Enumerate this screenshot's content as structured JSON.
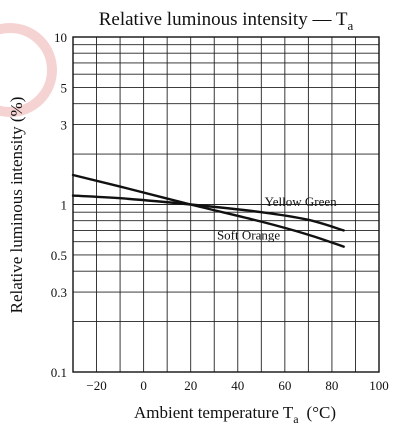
{
  "chart_data": {
    "type": "line",
    "title": "Relative luminous intensity — T",
    "title_sub": "a",
    "xlabel": "Ambient temperature  T",
    "xlabel_sub": "a",
    "xlabel_unit": "(°C)",
    "ylabel": "Relative luminous intensity  (%)",
    "y_scale": "log",
    "xlim": [
      -30,
      100
    ],
    "ylim": [
      0.1,
      10
    ],
    "x_ticks": [
      -20,
      0,
      20,
      40,
      60,
      80,
      100
    ],
    "x_tick_labels": [
      "−20",
      "0",
      "20",
      "40",
      "60",
      "80",
      "100"
    ],
    "y_ticks": [
      0.1,
      0.3,
      0.5,
      1,
      3,
      5,
      10
    ],
    "y_tick_labels": [
      "0.1",
      "0.3",
      "0.5",
      "1",
      "3",
      "5",
      "10"
    ],
    "grid": true,
    "watermark_color": "#f2c4c4",
    "series": [
      {
        "name": "Yellow Green",
        "x": [
          -30,
          -10,
          20,
          50,
          70,
          85
        ],
        "values": [
          1.13,
          1.09,
          1.0,
          0.9,
          0.81,
          0.7
        ]
      },
      {
        "name": "Soft Orange",
        "x": [
          -30,
          -10,
          20,
          50,
          70,
          85
        ],
        "values": [
          1.5,
          1.28,
          1.0,
          0.79,
          0.66,
          0.56
        ]
      }
    ]
  }
}
